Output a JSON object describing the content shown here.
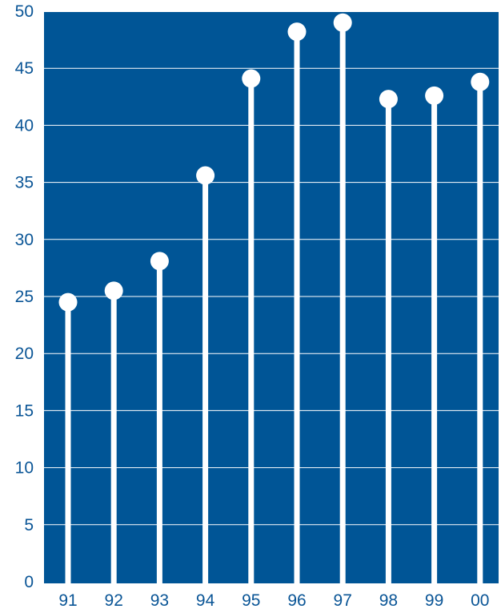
{
  "chart_data": {
    "type": "lollipop",
    "categories": [
      "91",
      "92",
      "93",
      "94",
      "95",
      "96",
      "97",
      "98",
      "99",
      "00"
    ],
    "values": [
      24.5,
      25.5,
      28.1,
      35.6,
      44.1,
      48.2,
      49.0,
      42.3,
      42.6,
      43.8
    ],
    "title": "",
    "xlabel": "",
    "ylabel": "",
    "ylim": [
      0,
      50
    ],
    "yticks": [
      0,
      5,
      10,
      15,
      20,
      25,
      30,
      35,
      40,
      45,
      50
    ],
    "grid": true,
    "legend": "none"
  },
  "colors": {
    "plot_background": "#005596",
    "axis_text": "#0a5596",
    "gridline": "#ffffff",
    "stem": "#ffffff",
    "marker": "#ffffff"
  }
}
